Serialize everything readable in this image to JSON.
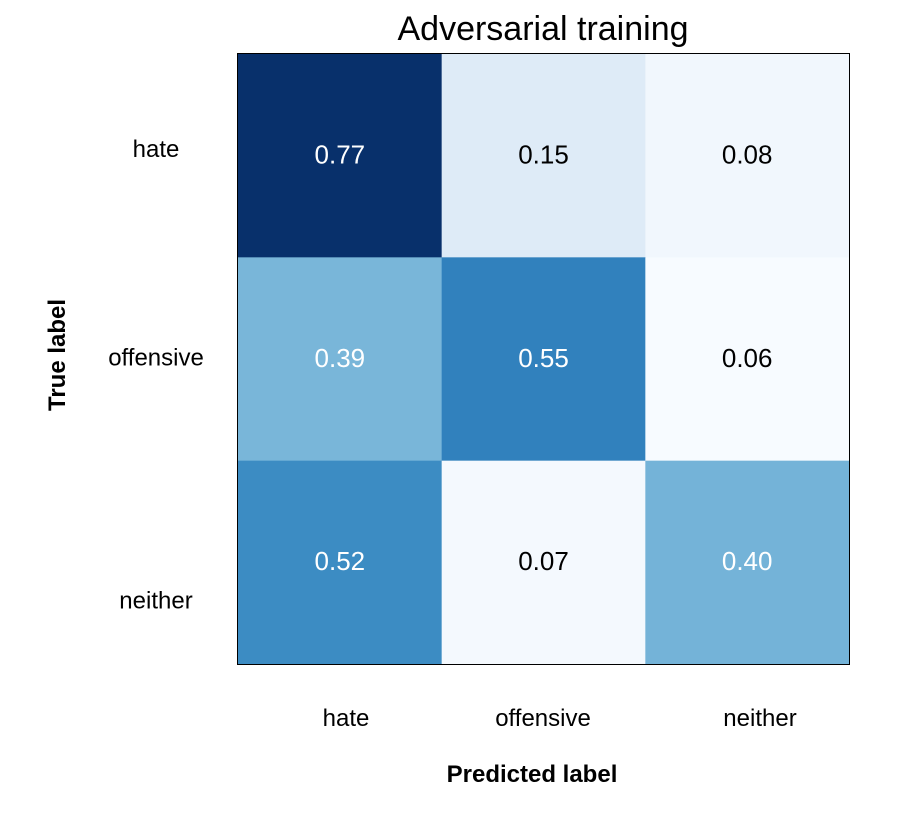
{
  "chart_data": {
    "type": "heatmap",
    "title": "Adversarial training",
    "xlabel": "Predicted label",
    "ylabel": "True label",
    "x_categories": [
      "hate",
      "offensive",
      "neither"
    ],
    "y_categories": [
      "hate",
      "offensive",
      "neither"
    ],
    "values": [
      [
        0.77,
        0.15,
        0.08
      ],
      [
        0.39,
        0.55,
        0.06
      ],
      [
        0.52,
        0.07,
        0.4
      ]
    ],
    "value_labels": [
      [
        "0.77",
        "0.15",
        "0.08"
      ],
      [
        "0.39",
        "0.55",
        "0.06"
      ],
      [
        "0.52",
        "0.07",
        "0.40"
      ]
    ],
    "colormap": "Blues",
    "color_light": "#f7fbff",
    "color_dark": "#08306b",
    "text_dark_color": "#000000",
    "text_light_color": "#ffffff",
    "grid": false,
    "colorbar": false
  }
}
